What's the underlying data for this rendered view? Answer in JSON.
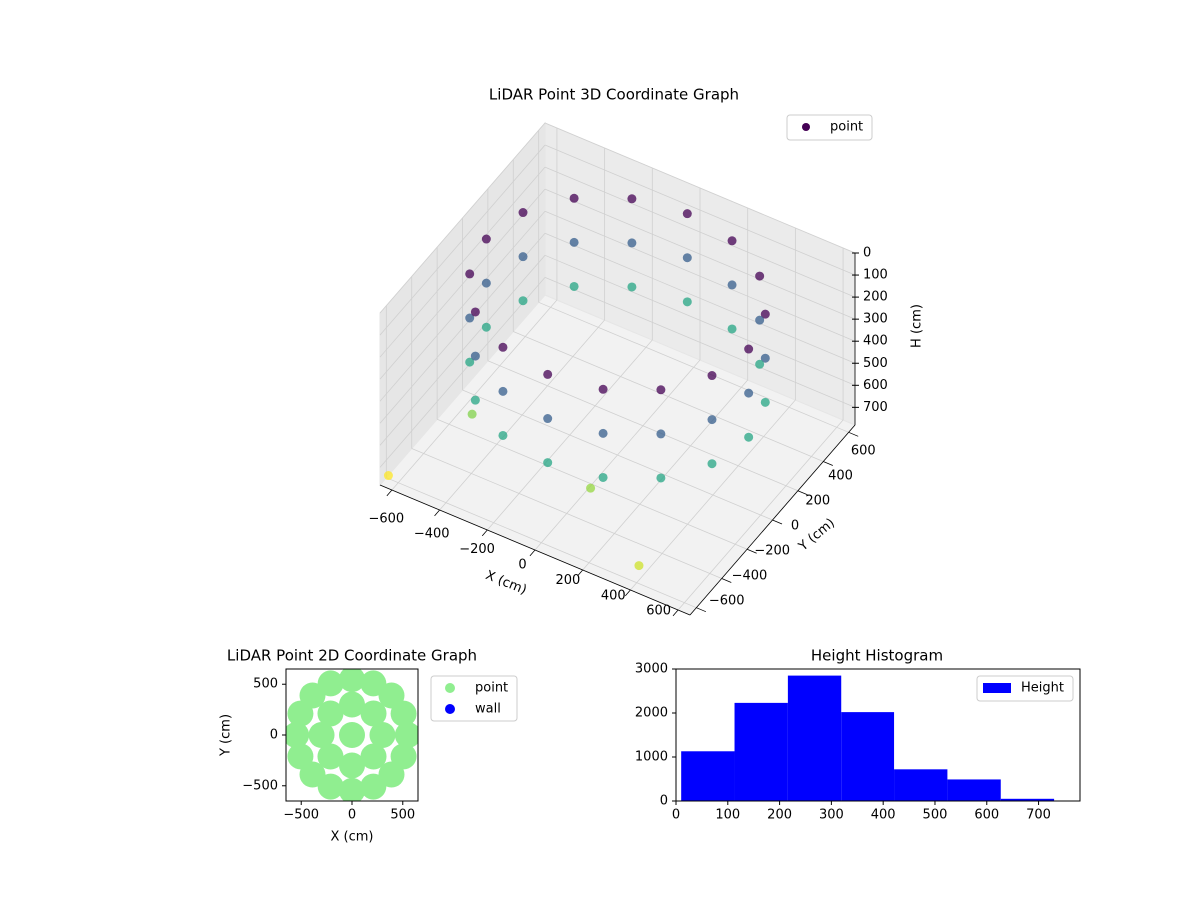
{
  "chart_data": [
    {
      "type": "scatter3d",
      "title": "LiDAR Point 3D Coordinate Graph",
      "xlabel": "X (cm)",
      "ylabel": "Y (cm)",
      "zlabel": "H (cm)",
      "series": [
        {
          "name": "point",
          "x": [
            550,
            550,
            550,
            508,
            508,
            508,
            389,
            389,
            389,
            210,
            210,
            210,
            0,
            0,
            0,
            -210,
            -210,
            -210,
            -389,
            -389,
            -389,
            -508,
            -508,
            -508,
            -550,
            -550,
            -550,
            -508,
            -508,
            -508,
            -389,
            -389,
            -389,
            -210,
            -210,
            -210,
            0,
            0,
            0,
            210,
            210,
            210,
            389,
            389,
            389,
            508,
            508,
            508,
            -620,
            -450,
            420,
            100
          ],
          "y": [
            0,
            0,
            0,
            210,
            210,
            210,
            389,
            389,
            389,
            508,
            508,
            508,
            550,
            550,
            550,
            508,
            508,
            508,
            389,
            389,
            389,
            210,
            210,
            210,
            0,
            0,
            0,
            -210,
            -210,
            -210,
            -389,
            -389,
            -389,
            -508,
            -508,
            -508,
            -550,
            -550,
            -550,
            -508,
            -508,
            -508,
            -389,
            -389,
            -389,
            -210,
            -210,
            -210,
            -640,
            -300,
            -620,
            -400
          ],
          "z": [
            50,
            250,
            450,
            50,
            250,
            450,
            50,
            250,
            450,
            50,
            250,
            450,
            50,
            250,
            450,
            50,
            250,
            450,
            50,
            250,
            450,
            50,
            250,
            450,
            50,
            250,
            450,
            50,
            250,
            450,
            50,
            250,
            450,
            50,
            250,
            450,
            50,
            250,
            450,
            50,
            250,
            450,
            50,
            250,
            450,
            50,
            250,
            450,
            730,
            600,
            680,
            620
          ]
        }
      ],
      "colormap": "viridis",
      "legend": "upper right",
      "xlim": [
        -650,
        650
      ],
      "ylim": [
        -650,
        650
      ],
      "zlim": [
        780,
        0
      ],
      "xticks": [
        {
          "value": -600,
          "label": "−600"
        },
        {
          "value": -400,
          "label": "−400"
        },
        {
          "value": -200,
          "label": "−200"
        },
        0,
        200,
        400,
        600
      ],
      "yticks": [
        {
          "value": -600,
          "label": "−600"
        },
        {
          "value": -400,
          "label": "−400"
        },
        {
          "value": -200,
          "label": "−200"
        },
        0,
        200,
        400,
        600
      ],
      "zticks": [
        0,
        100,
        200,
        300,
        400,
        500,
        600,
        700
      ],
      "grid": true
    },
    {
      "type": "scatter",
      "title": "LiDAR Point 2D Coordinate Graph",
      "xlabel": "X (cm)",
      "ylabel": "Y (cm)",
      "series": [
        {
          "name": "point",
          "color": "#90ee90",
          "x": [
            550,
            508,
            389,
            210,
            0,
            -210,
            -389,
            -508,
            -550,
            -508,
            -389,
            -210,
            0,
            210,
            389,
            508,
            300,
            212,
            0,
            -212,
            -300,
            -212,
            0,
            212,
            0
          ],
          "y": [
            0,
            210,
            389,
            508,
            550,
            508,
            389,
            210,
            0,
            -210,
            -389,
            -508,
            -550,
            -508,
            -389,
            -210,
            0,
            212,
            300,
            212,
            0,
            -212,
            -300,
            -212,
            0
          ]
        },
        {
          "name": "wall",
          "color": "#0000ff",
          "x": [],
          "y": []
        }
      ],
      "legend": "outside right",
      "xlim": [
        -650,
        650
      ],
      "ylim": [
        -650,
        650
      ],
      "xticks": [
        {
          "value": -500,
          "label": "−500"
        },
        0,
        500
      ],
      "yticks": [
        {
          "value": -500,
          "label": "−500"
        },
        0,
        500
      ]
    },
    {
      "type": "histogram",
      "title": "Height Histogram",
      "bins": [
        10,
        113,
        216,
        319,
        421,
        524,
        627,
        730
      ],
      "series": [
        {
          "name": "Height",
          "color": "#0000ff",
          "values": [
            1130,
            2230,
            2850,
            2020,
            720,
            490,
            50
          ]
        }
      ],
      "legend": "upper right",
      "xlim": [
        0,
        780
      ],
      "ylim": [
        0,
        3000
      ],
      "xticks": [
        0,
        100,
        200,
        300,
        400,
        500,
        600,
        700
      ],
      "yticks": [
        0,
        1000,
        2000,
        3000
      ]
    }
  ]
}
